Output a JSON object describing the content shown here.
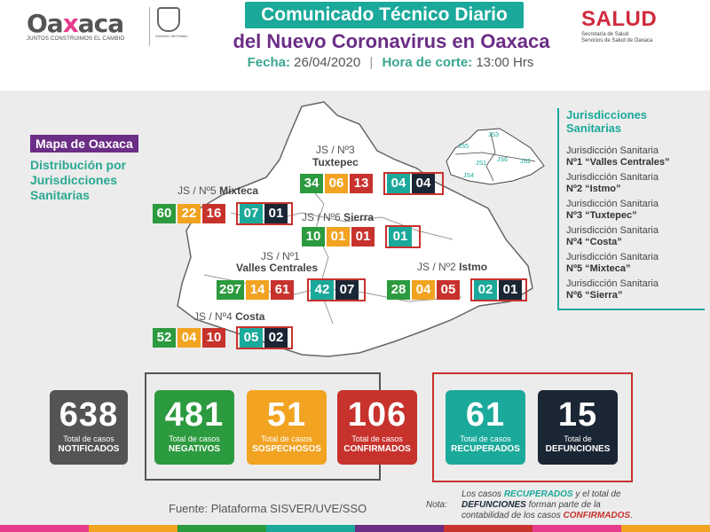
{
  "header": {
    "logo_word_pre": "Oa",
    "logo_word_x": "x",
    "logo_word_post": "aca",
    "logo_tagline": "JUNTOS CONSTRUIMOS EL CAMBIO",
    "seal_caption": "Gobierno del Estado",
    "title": "Comunicado Técnico Diario",
    "subtitle": "del Nuevo Coronavirus en Oaxaca",
    "fecha_label": "Fecha:",
    "fecha_value": "26/04/2020",
    "hora_label": "Hora de corte:",
    "hora_value": "13:00 Hrs",
    "salud_title": "SALUD",
    "salud_line1": "Secretaría de Salud",
    "salud_line2": "Servicios de Salud de Oaxaca"
  },
  "map": {
    "tag": "Mapa de Oaxaca",
    "description_1": "Distribución por",
    "description_2": "Jurisdicciones",
    "description_3": "Sanitarias",
    "jurisdictions": [
      {
        "id": "js3",
        "label_1": "JS / Nº3",
        "label_2": "Tuxtepec",
        "values": [
          "34",
          "06",
          "13",
          "04",
          "04"
        ]
      },
      {
        "id": "js5",
        "label_1": "JS / Nº5",
        "label_2": "Mixteca",
        "values": [
          "60",
          "22",
          "16",
          "07",
          "01"
        ]
      },
      {
        "id": "js6",
        "label_1": "JS / Nº6",
        "label_2": "Sierra",
        "values": [
          "10",
          "01",
          "01",
          "01"
        ]
      },
      {
        "id": "js1",
        "label_1": "JS / Nº1",
        "label_2": "Valles Centrales",
        "values": [
          "297",
          "14",
          "61",
          "42",
          "07"
        ]
      },
      {
        "id": "js2",
        "label_1": "JS / Nº2",
        "label_2": "Istmo",
        "values": [
          "28",
          "04",
          "05",
          "02",
          "01"
        ]
      },
      {
        "id": "js4",
        "label_1": "JS / Nº4",
        "label_2": "Costa",
        "values": [
          "52",
          "04",
          "10",
          "05",
          "02"
        ]
      }
    ],
    "mini_labels": [
      "JS5",
      "JS3",
      "JS6",
      "JS1",
      "JS2",
      "JS4"
    ]
  },
  "legend": {
    "title_1": "Jurisdicciones",
    "title_2": "Sanitarias",
    "items": [
      {
        "pre": "Jurisdicción Sanitaria",
        "name": "Nº1 “Valles Centrales”"
      },
      {
        "pre": "Jurisdicción Sanitaria",
        "name": "Nº2 “Istmo”"
      },
      {
        "pre": "Jurisdicción Sanitaria",
        "name": "Nº3 “Tuxtepec”"
      },
      {
        "pre": "Jurisdicción Sanitaria",
        "name": "Nº4 “Costa”"
      },
      {
        "pre": "Jurisdicción Sanitaria",
        "name": "Nº5 “Mixteca”"
      },
      {
        "pre": "Jurisdicción Sanitaria",
        "name": "Nº6 “Sierra”"
      }
    ]
  },
  "totals": [
    {
      "num": "638",
      "l1": "Total de casos",
      "l2": "NOTIFICADOS",
      "color": "#545454"
    },
    {
      "num": "481",
      "l1": "Total de casos",
      "l2": "NEGATIVOS",
      "color": "#2c9a3e"
    },
    {
      "num": "51",
      "l1": "Total de casos",
      "l2": "SOSPECHOSOS",
      "color": "#f1a321"
    },
    {
      "num": "106",
      "l1": "Total de casos",
      "l2": "CONFIRMADOS",
      "color": "#c7322d"
    },
    {
      "num": "61",
      "l1": "Total de casos",
      "l2": "RECUPERADOS",
      "color": "#1aa99a"
    },
    {
      "num": "15",
      "l1": "Total de",
      "l2": "DEFUNCIONES",
      "color": "#1b2635"
    }
  ],
  "footer": {
    "fuente": "Fuente: Plataforma SISVER/UVE/SSO",
    "nota_label": "Nota:",
    "nota_1a": "Los casos ",
    "nota_1b": "RECUPERADOS",
    "nota_1c": " y el total de",
    "nota_2a": "DEFUNCIONES",
    "nota_2b": " forman parte de la",
    "nota_3a": "contabilidad de los casos ",
    "nota_3b": "CONFIRMADOS",
    "nota_3c": "."
  }
}
